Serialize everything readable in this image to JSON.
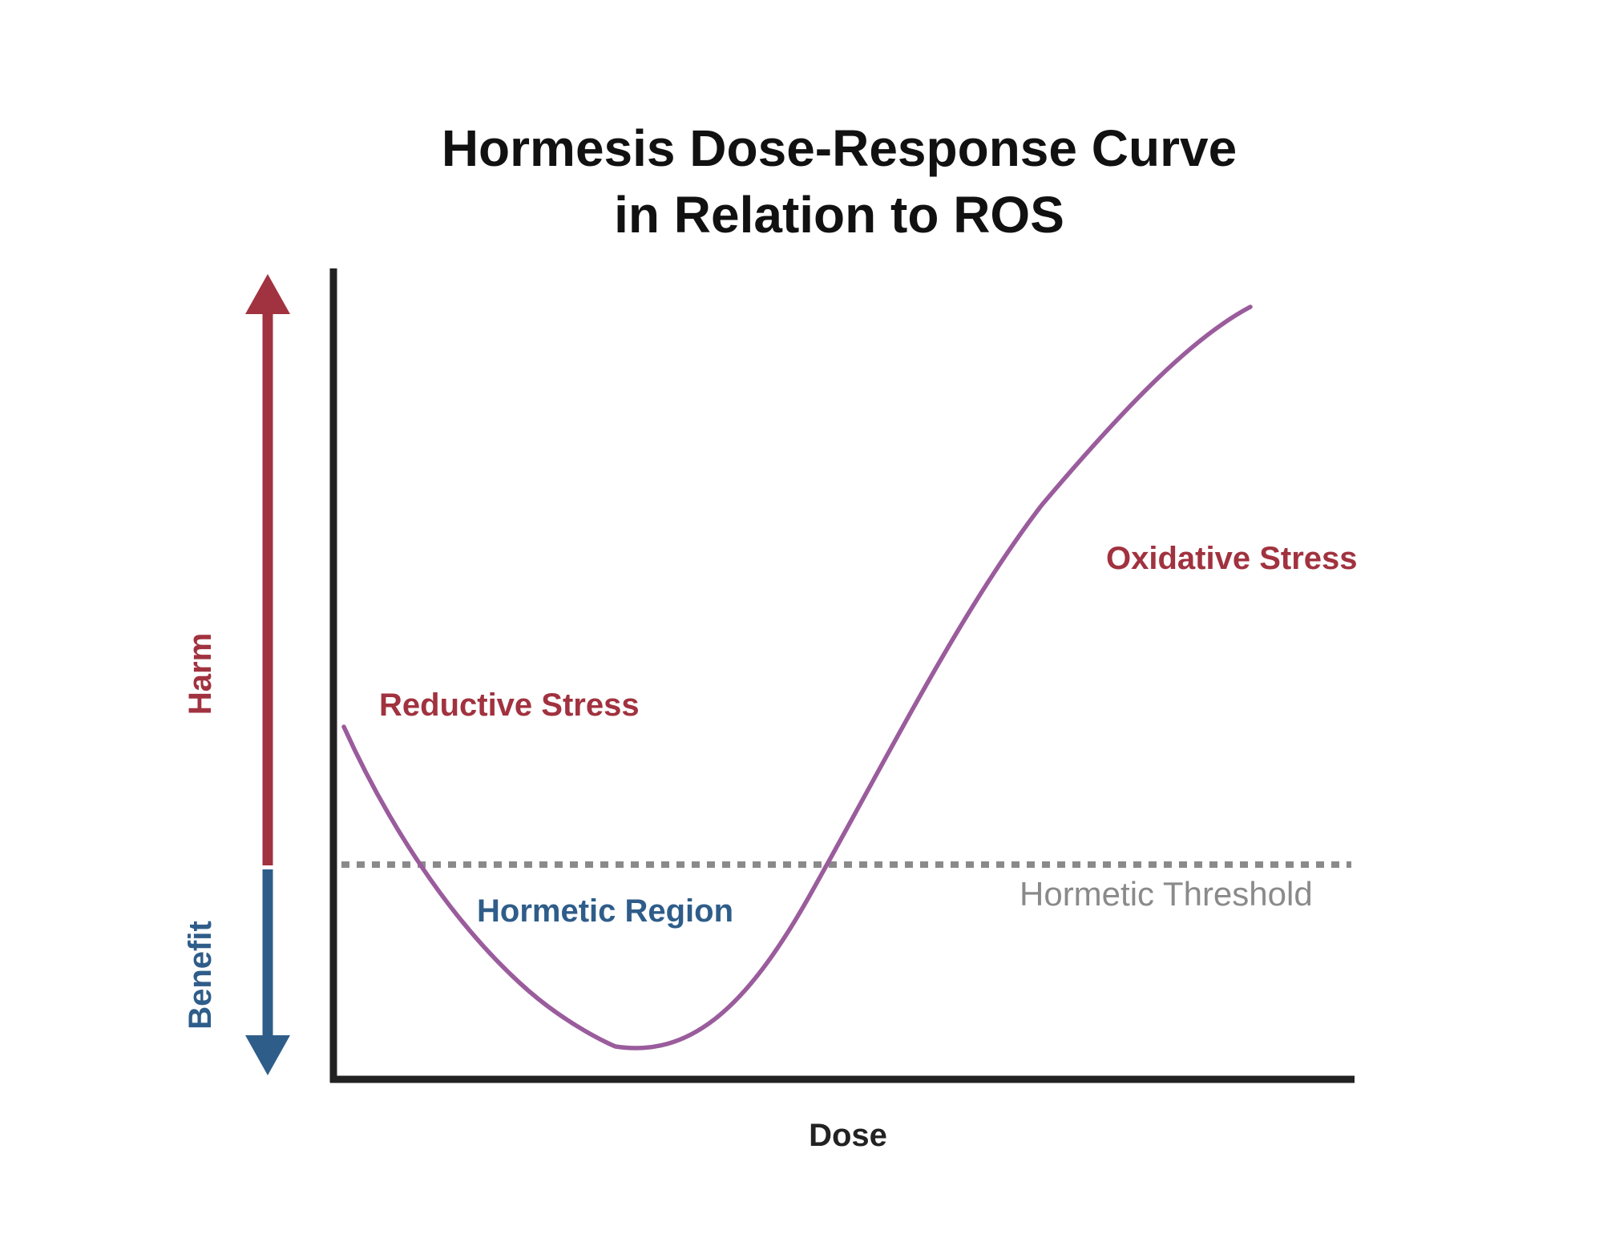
{
  "title": {
    "line1": "Hormesis Dose-Response Curve",
    "line2": "in Relation to ROS"
  },
  "x_axis": {
    "label": "Dose"
  },
  "y_axis": {
    "harm_label": "Harm",
    "benefit_label": "Benefit"
  },
  "regions": {
    "reductive": "Reductive Stress",
    "hormetic": "Hormetic Region",
    "oxidative": "Oxidative Stress"
  },
  "threshold": {
    "label": "Hormetic Threshold",
    "style": "dotted"
  },
  "colors": {
    "harm": "#a1323f",
    "benefit": "#2f5d8a",
    "curve": "#9a5c9c",
    "threshold": "#8a8a8a",
    "axis": "#222222",
    "title": "#111111"
  }
}
